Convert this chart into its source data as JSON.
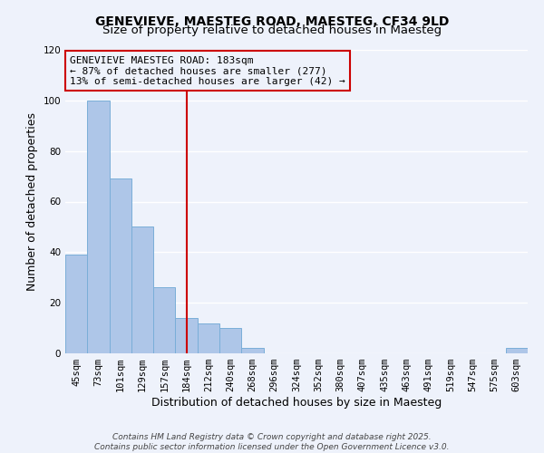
{
  "title": "GENEVIEVE, MAESTEG ROAD, MAESTEG, CF34 9LD",
  "subtitle": "Size of property relative to detached houses in Maesteg",
  "xlabel": "Distribution of detached houses by size in Maesteg",
  "ylabel": "Number of detached properties",
  "categories": [
    "45sqm",
    "73sqm",
    "101sqm",
    "129sqm",
    "157sqm",
    "184sqm",
    "212sqm",
    "240sqm",
    "268sqm",
    "296sqm",
    "324sqm",
    "352sqm",
    "380sqm",
    "407sqm",
    "435sqm",
    "463sqm",
    "491sqm",
    "519sqm",
    "547sqm",
    "575sqm",
    "603sqm"
  ],
  "values": [
    39,
    100,
    69,
    50,
    26,
    14,
    12,
    10,
    2,
    0,
    0,
    0,
    0,
    0,
    0,
    0,
    0,
    0,
    0,
    0,
    2
  ],
  "bar_color": "#aec6e8",
  "bar_edge_color": "#7aaed8",
  "marker_line_x_label": "184sqm",
  "marker_line_color": "#cc0000",
  "ylim": [
    0,
    120
  ],
  "yticks": [
    0,
    20,
    40,
    60,
    80,
    100,
    120
  ],
  "annotation_title": "GENEVIEVE MAESTEG ROAD: 183sqm",
  "annotation_line1": "← 87% of detached houses are smaller (277)",
  "annotation_line2": "13% of semi-detached houses are larger (42) →",
  "annotation_box_color": "#cc0000",
  "footer_line1": "Contains HM Land Registry data © Crown copyright and database right 2025.",
  "footer_line2": "Contains public sector information licensed under the Open Government Licence v3.0.",
  "background_color": "#eef2fb",
  "grid_color": "#ffffff",
  "title_fontsize": 10,
  "subtitle_fontsize": 9.5,
  "axis_label_fontsize": 9,
  "tick_fontsize": 7.5,
  "footer_fontsize": 6.5,
  "annotation_fontsize": 8
}
